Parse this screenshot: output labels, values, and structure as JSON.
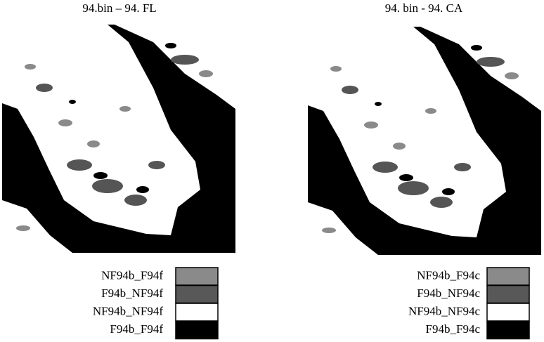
{
  "panels": [
    {
      "title": "94.bin – 94. FL",
      "legend": [
        {
          "label": "NF94b_F94f",
          "color": "#8a8a8a"
        },
        {
          "label": "F94b_NF94f",
          "color": "#585858"
        },
        {
          "label": "NF94b_NF94f",
          "color": "#ffffff"
        },
        {
          "label": "F94b_F94f",
          "color": "#000000"
        }
      ]
    },
    {
      "title": "94. bin  - 94. CA",
      "legend": [
        {
          "label": "NF94b_F94c",
          "color": "#8a8a8a"
        },
        {
          "label": "F94b_NF94c",
          "color": "#585858"
        },
        {
          "label": "NF94b_NF94c",
          "color": "#ffffff"
        },
        {
          "label": "F94b_F94c",
          "color": "#000000"
        }
      ]
    }
  ]
}
